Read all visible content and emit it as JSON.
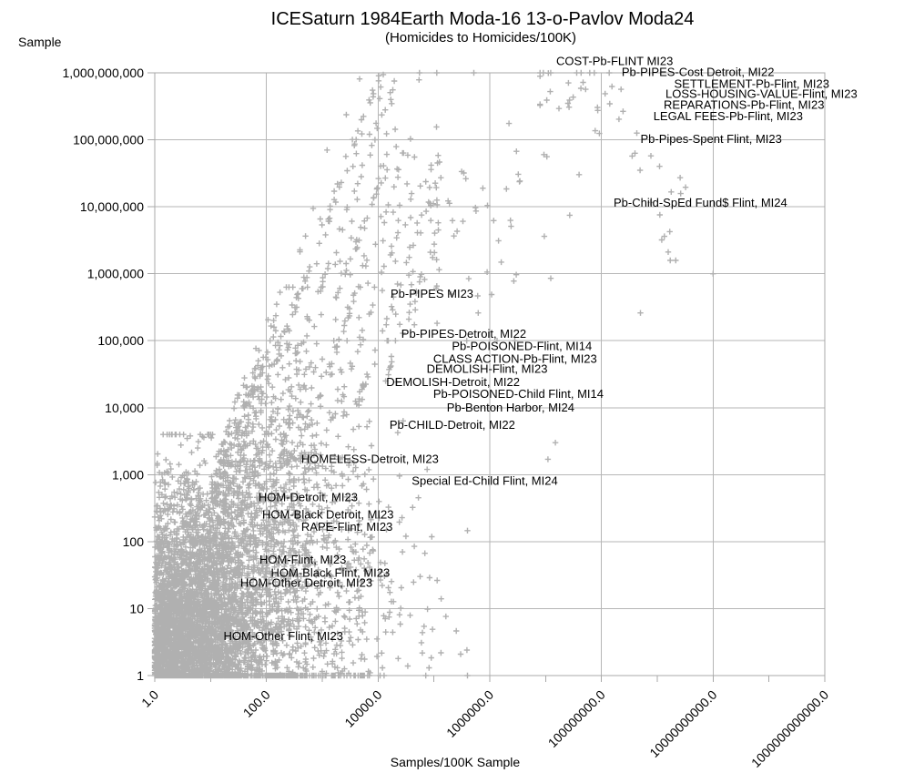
{
  "chart": {
    "title": "ICESaturn 1984Earth Moda-16 13-o-Pavlov Moda24",
    "subtitle": "(Homicides to Homicides/100K)",
    "y_axis_title": "Sample",
    "x_axis_title": "Samples/100K Sample"
  },
  "chart_data": {
    "type": "scatter",
    "x_scale": "log",
    "y_scale": "log",
    "xlim": [
      1,
      1000000000000
    ],
    "ylim": [
      1,
      1000000000
    ],
    "grid": true,
    "legend": "none",
    "marker": "plus",
    "marker_color": "#b0b0b0",
    "grid_color": "#b6b6b6",
    "axis_color": "#a8a8a8",
    "text_color": "#000000",
    "x_tick_labels": [
      "1.0",
      "100.0",
      "10000.0",
      "1000000.0",
      "100000000.0",
      "10000000000.0",
      "1000000000000.0"
    ],
    "y_tick_labels": [
      "1",
      "10",
      "100",
      "1,000",
      "10,000",
      "100,000",
      "1,000,000",
      "10,000,000",
      "100,000,000",
      "1,000,000,000"
    ],
    "labeled_points": [
      {
        "label": "COST-Pb-FLINT MI23",
        "x": 15500000,
        "y": 1300000000
      },
      {
        "label": "Pb-PIPES-Cost Detroit, MI22",
        "x": 230000000,
        "y": 890000000
      },
      {
        "label": "SETTLEMENT-Pb-Flint, MI23",
        "x": 2000000000,
        "y": 600000000
      },
      {
        "label": "LOSS-HOUSING-VALUE-Flint, MI23",
        "x": 1400000000,
        "y": 420000000
      },
      {
        "label": "REPARATIONS-Pb-Flint, MI23",
        "x": 1300000000,
        "y": 290000000
      },
      {
        "label": "LEGAL FEES-Pb-Flint, MI23",
        "x": 850000000,
        "y": 195000000
      },
      {
        "label": "Pb-Pipes-Spent Flint, MI23",
        "x": 500000000,
        "y": 90000000
      },
      {
        "label": "Pb-Child-SpEd Fund$ Flint, MI24",
        "x": 165000000,
        "y": 10000000
      },
      {
        "label": "Pb-PIPES MI23",
        "x": 16700,
        "y": 440000
      },
      {
        "label": "Pb-PIPES-Detroit, MI22",
        "x": 26000,
        "y": 110000
      },
      {
        "label": "Pb-POISONED-Flint, MI14",
        "x": 210000,
        "y": 72000
      },
      {
        "label": "CLASS ACTION-Pb-Flint, MI23",
        "x": 97000,
        "y": 47000
      },
      {
        "label": "DEMOLISH-Flint, MI23",
        "x": 74000,
        "y": 33000
      },
      {
        "label": "DEMOLISH-Detroit, MI22",
        "x": 14000,
        "y": 21000
      },
      {
        "label": "Pb-POISONED-Child Flint, MI14",
        "x": 97000,
        "y": 14000
      },
      {
        "label": "Pb-Benton Harbor, MI24",
        "x": 170000,
        "y": 8800
      },
      {
        "label": "Pb-CHILD-Detroit, MI22",
        "x": 16000,
        "y": 4800
      },
      {
        "label": "HOMELESS-Detroit, MI23",
        "x": 420,
        "y": 1500
      },
      {
        "label": "Special Ed-Child Flint, MI24",
        "x": 40000,
        "y": 700
      },
      {
        "label": "HOM-Detroit, MI23",
        "x": 72,
        "y": 400
      },
      {
        "label": "HOM-Black Detroit, MI23",
        "x": 84,
        "y": 220
      },
      {
        "label": "RAPE-Flint, MI23",
        "x": 420,
        "y": 145
      },
      {
        "label": "HOM-Flint, MI23",
        "x": 75,
        "y": 47
      },
      {
        "label": "HOM-Black Flint, MI23",
        "x": 120,
        "y": 30
      },
      {
        "label": "HOM-Other Detroit, MI23",
        "x": 34,
        "y": 21
      },
      {
        "label": "HOM-Other Flint, MI23",
        "x": 17,
        "y": 3.4
      }
    ],
    "isolated_points": [
      {
        "x": 10000000000,
        "y": 1000000
      },
      {
        "x": 1200000000,
        "y": 3200000
      },
      {
        "x": 15000000,
        "y": 3000
      },
      {
        "x": 11000000,
        "y": 1700
      },
      {
        "x": 500000000,
        "y": 260000
      }
    ],
    "point_cloud": {
      "seed": 11,
      "clusters": [
        {
          "name": "dense-core",
          "count": 3000,
          "u": {
            "mean": 0,
            "sd": 0.95,
            "min": 0,
            "max": 2.7,
            "fold": true
          },
          "v": {
            "mean": 0,
            "sd": 1.3,
            "min": 0,
            "max": 3.6,
            "fold": true
          }
        },
        {
          "name": "mid-spread",
          "count": 1700,
          "u": {
            "mean": 1.4,
            "sd": 1.2,
            "min": 0,
            "max": 5.4
          },
          "v": {
            "mean": 2.2,
            "sd": 1.5,
            "min": 0,
            "max": 5.8
          },
          "envelope": true
        },
        {
          "name": "right-low-tail",
          "count": 230,
          "u": {
            "mean": 3.0,
            "sd": 1.0,
            "min": 1.2,
            "max": 5.6
          },
          "v": {
            "mean": 0.9,
            "sd": 0.8,
            "min": 0,
            "max": 2.6
          }
        },
        {
          "name": "upper-band",
          "count": 130,
          "u": {
            "mean": 4.7,
            "sd": 1.2,
            "min": 2.6,
            "max": 7.6
          },
          "v": {
            "mean": 6.7,
            "sd": 1.1,
            "min": 5.0,
            "max": 9.0
          },
          "envelope": true
        },
        {
          "name": "top-right-cluster",
          "count": 34,
          "u": {
            "mean": 7.6,
            "sd": 0.5,
            "min": 6.9,
            "max": 8.6
          },
          "v": {
            "mean": 8.75,
            "sd": 0.4,
            "min": 7.8,
            "max": 9.0
          }
        },
        {
          "name": "right-mid-cluster",
          "count": 16,
          "u": {
            "mean": 9.2,
            "sd": 0.45,
            "min": 8.4,
            "max": 10.1
          },
          "v": {
            "mean": 7.0,
            "sd": 0.55,
            "min": 6.2,
            "max": 8.1
          }
        },
        {
          "name": "bottom-axis-row",
          "count": 280,
          "u": {
            "mean": 0,
            "sd": 1.3,
            "min": 0,
            "max": 4.6,
            "fold": true
          },
          "v": {
            "mean": 0,
            "sd": 0,
            "min": 0,
            "max": 0
          }
        }
      ],
      "streaks": [
        {
          "u0": -0.1,
          "slope": 2.3,
          "vmin": 0.3,
          "vmax": 5.3,
          "count": 85
        },
        {
          "u0": 0.12,
          "slope": 2.3,
          "vmin": 1.5,
          "vmax": 9.0,
          "count": 110
        },
        {
          "u0": 0.45,
          "slope": 2.3,
          "vmin": 0.6,
          "vmax": 9.0,
          "count": 75
        },
        {
          "u0": 0.8,
          "slope": 2.3,
          "vmin": 1.2,
          "vmax": 8.2,
          "count": 65
        },
        {
          "u0": 1.12,
          "slope": 2.3,
          "vmin": 3.0,
          "vmax": 7.8,
          "count": 50
        },
        {
          "u0": 1.5,
          "slope": 2.3,
          "vmin": 2.2,
          "vmax": 7.0,
          "count": 42
        },
        {
          "u0": 1.85,
          "slope": 2.3,
          "vmin": 4.0,
          "vmax": 7.6,
          "count": 34
        },
        {
          "u0": 2.2,
          "slope": 2.3,
          "vmin": 4.4,
          "vmax": 7.2,
          "count": 26
        }
      ]
    }
  }
}
